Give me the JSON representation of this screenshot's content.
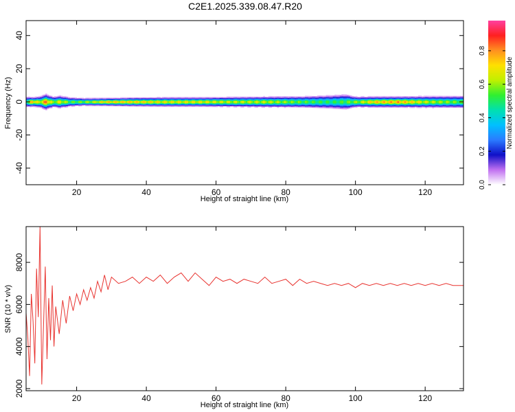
{
  "title": "C2E1.2025.339.08.47.R20",
  "colors": {
    "snr_line": "#e8322e",
    "frame": "#000000",
    "colormap": [
      "#ffffff",
      "#c070f0",
      "#1010c8",
      "#2a7bff",
      "#00c0ff",
      "#00e0b0",
      "#30f030",
      "#c0f000",
      "#ffe000",
      "#ff9020",
      "#ff2020",
      "#ff40a0"
    ]
  },
  "chart_data": [
    {
      "type": "heatmap",
      "name": "spectrogram",
      "xlabel": "Height of straight line (km)",
      "ylabel": "Frequency (Hz)",
      "xlim": [
        5.5,
        131
      ],
      "ylim": [
        -50,
        49
      ],
      "xticks": [
        20,
        40,
        60,
        80,
        100,
        120
      ],
      "yticks": [
        40,
        20,
        0,
        -20,
        -40
      ],
      "grid": false,
      "band_center_hz": 0,
      "band_profile": {
        "x": [
          5.5,
          7,
          9,
          11,
          13,
          15,
          18,
          22,
          28,
          35,
          45,
          55,
          65,
          75,
          85,
          93,
          97,
          100,
          105,
          112,
          120,
          131
        ],
        "halfwidth_hz": [
          3.5,
          3,
          3.5,
          5,
          3.5,
          4,
          3,
          2.5,
          2.5,
          2.8,
          3,
          3,
          3.3,
          3.5,
          3.8,
          4.5,
          5,
          3.5,
          3.5,
          3.5,
          3.8,
          4
        ],
        "peak_amplitude": [
          0.6,
          0.85,
          0.7,
          0.9,
          0.65,
          0.75,
          0.6,
          0.65,
          0.8,
          0.8,
          0.75,
          0.75,
          0.7,
          0.7,
          0.6,
          0.55,
          0.6,
          0.65,
          0.8,
          0.85,
          0.7,
          0.6
        ]
      },
      "colorbar": {
        "label": "Normalized spectral amplitude",
        "range": [
          0,
          0.98
        ],
        "ticks": [
          0.0,
          0.2,
          0.4,
          0.6,
          0.8
        ],
        "tick_labels": [
          "0.0",
          "0.2",
          "0.4",
          "0.6",
          "0.8"
        ]
      }
    },
    {
      "type": "line",
      "name": "snr",
      "xlabel": "Height of straight line (km)",
      "ylabel": "SNR (10 * v/v)",
      "xlim": [
        5.5,
        131
      ],
      "ylim": [
        1900,
        9700
      ],
      "xticks": [
        20,
        40,
        60,
        80,
        100,
        120
      ],
      "yticks": [
        2000,
        4000,
        6000,
        8000
      ],
      "grid": false,
      "series": [
        {
          "x": [
            5.5,
            6,
            6.5,
            7,
            7.5,
            8,
            8.5,
            9,
            9.5,
            10,
            10.5,
            11,
            11.5,
            12,
            12.5,
            13,
            13.5,
            14,
            15,
            16,
            17,
            18,
            19,
            20,
            21,
            22,
            23,
            24,
            25,
            26,
            27,
            28,
            29,
            30,
            32,
            34,
            36,
            38,
            40,
            42,
            44,
            46,
            48,
            50,
            52,
            54,
            56,
            58,
            60,
            62,
            64,
            66,
            68,
            70,
            72,
            74,
            76,
            78,
            80,
            82,
            84,
            86,
            88,
            90,
            92,
            94,
            96,
            98,
            100,
            102,
            104,
            106,
            108,
            110,
            112,
            114,
            116,
            118,
            120,
            122,
            124,
            126,
            128,
            130,
            131
          ],
          "y": [
            5600,
            4400,
            2600,
            6500,
            5200,
            3200,
            7700,
            5400,
            9700,
            2200,
            5000,
            7800,
            3400,
            6300,
            4300,
            6900,
            4000,
            5900,
            4600,
            6200,
            5100,
            6400,
            5700,
            6500,
            6000,
            6700,
            6200,
            6800,
            6300,
            7100,
            6600,
            7400,
            6700,
            7300,
            7000,
            7100,
            7300,
            7000,
            7300,
            7100,
            7400,
            7000,
            7300,
            7500,
            7100,
            7500,
            7200,
            6900,
            7300,
            7100,
            7200,
            7000,
            7200,
            7100,
            7000,
            7300,
            7000,
            7100,
            7200,
            6900,
            7200,
            7000,
            7100,
            7000,
            6900,
            7000,
            6900,
            7000,
            6800,
            7000,
            6900,
            7000,
            6900,
            7000,
            6900,
            7000,
            6900,
            7000,
            6900,
            7000,
            6900,
            7000,
            6900,
            6900,
            6900
          ]
        }
      ]
    }
  ]
}
